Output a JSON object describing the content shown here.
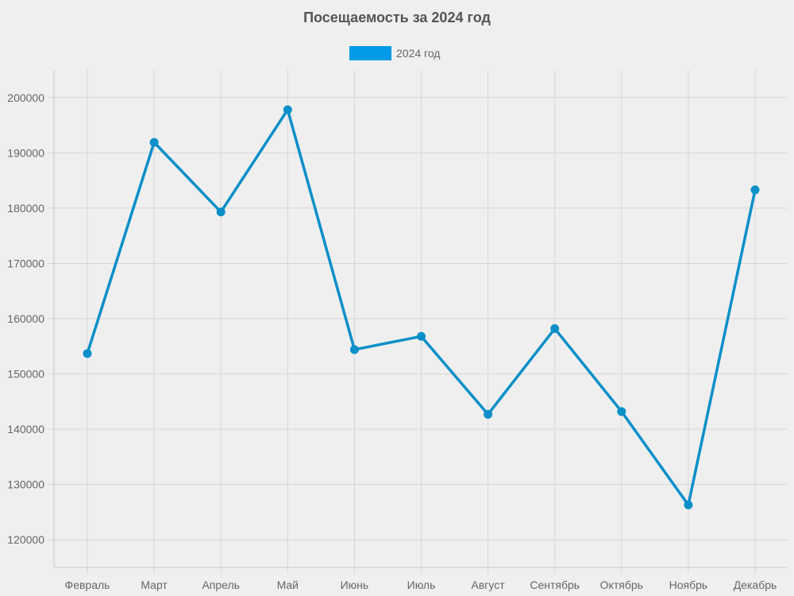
{
  "chart_data": {
    "type": "line",
    "title": "Посещаемость за 2024 год",
    "categories": [
      "Февраль",
      "Март",
      "Апрель",
      "Май",
      "Июнь",
      "Июль",
      "Август",
      "Сентябрь",
      "Октябрь",
      "Ноябрь",
      "Декабрь"
    ],
    "series": [
      {
        "name": "2024 год",
        "color": "#0a8fc8",
        "values": [
          153700,
          191900,
          179300,
          197800,
          154400,
          156800,
          142700,
          158200,
          143200,
          126300,
          183300
        ]
      }
    ],
    "ylim": [
      115000,
      205000
    ],
    "yticks": [
      120000,
      130000,
      140000,
      150000,
      160000,
      170000,
      180000,
      190000,
      200000
    ],
    "grid": true,
    "legend_position": "top-center"
  }
}
